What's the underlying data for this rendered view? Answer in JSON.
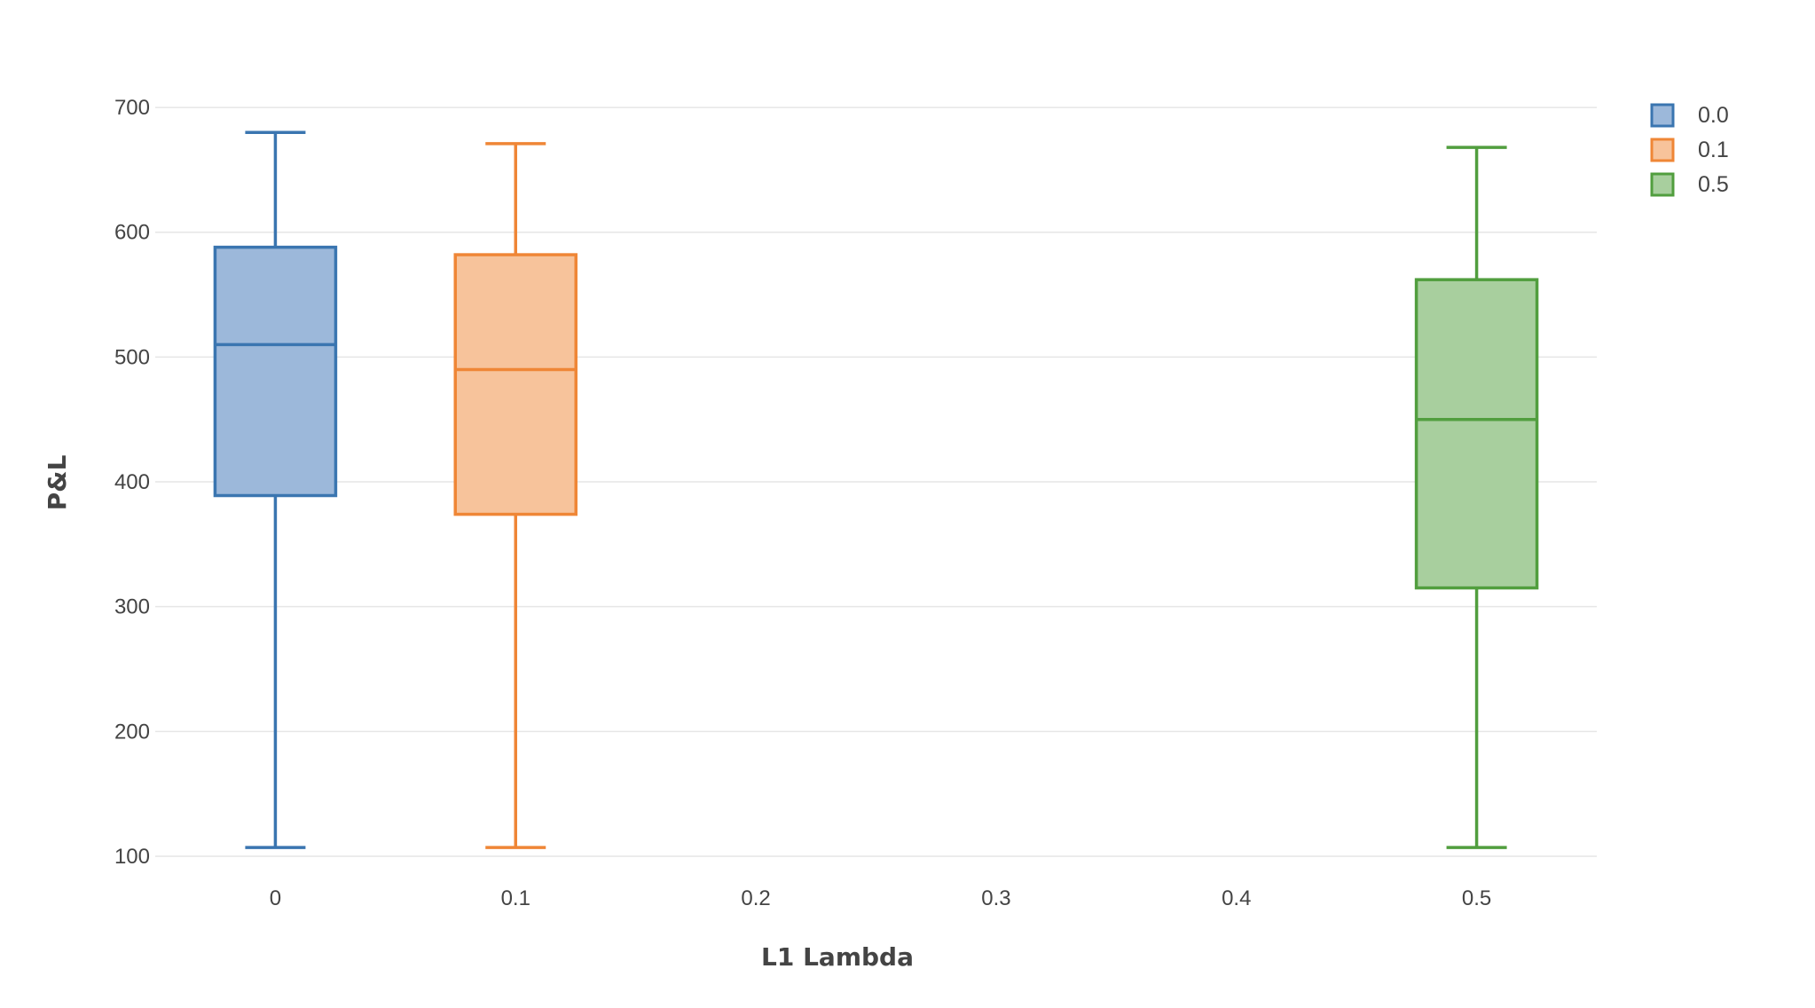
{
  "chart_data": {
    "type": "box",
    "xlabel": "L1 Lambda",
    "ylabel": "P&L",
    "xlim": [
      -0.05,
      0.55
    ],
    "ylim": [
      95,
      715
    ],
    "x_ticks": [
      {
        "value": 0,
        "label": "0"
      },
      {
        "value": 0.1,
        "label": "0.1"
      },
      {
        "value": 0.2,
        "label": "0.2"
      },
      {
        "value": 0.3,
        "label": "0.3"
      },
      {
        "value": 0.4,
        "label": "0.4"
      },
      {
        "value": 0.5,
        "label": "0.5"
      }
    ],
    "y_ticks": [
      {
        "value": 100,
        "label": "100"
      },
      {
        "value": 200,
        "label": "200"
      },
      {
        "value": 300,
        "label": "300"
      },
      {
        "value": 400,
        "label": "400"
      },
      {
        "value": 500,
        "label": "500"
      },
      {
        "value": 600,
        "label": "600"
      },
      {
        "value": 700,
        "label": "700"
      }
    ],
    "grid": true,
    "legend_position": "top-right",
    "series": [
      {
        "name": "0.0",
        "x": 0,
        "min": 107,
        "q1": 389,
        "median": 510,
        "q3": 588,
        "max": 680,
        "line_color": "#3a75b0",
        "fill_color": "#9cb8da"
      },
      {
        "name": "0.1",
        "x": 0.1,
        "min": 107,
        "q1": 374,
        "median": 490,
        "q3": 582,
        "max": 671,
        "line_color": "#ef8636",
        "fill_color": "#f7c39b"
      },
      {
        "name": "0.5",
        "x": 0.5,
        "min": 107,
        "q1": 315,
        "median": 450,
        "q3": 562,
        "max": 668,
        "line_color": "#519e3e",
        "fill_color": "#a8cf9e"
      }
    ]
  }
}
